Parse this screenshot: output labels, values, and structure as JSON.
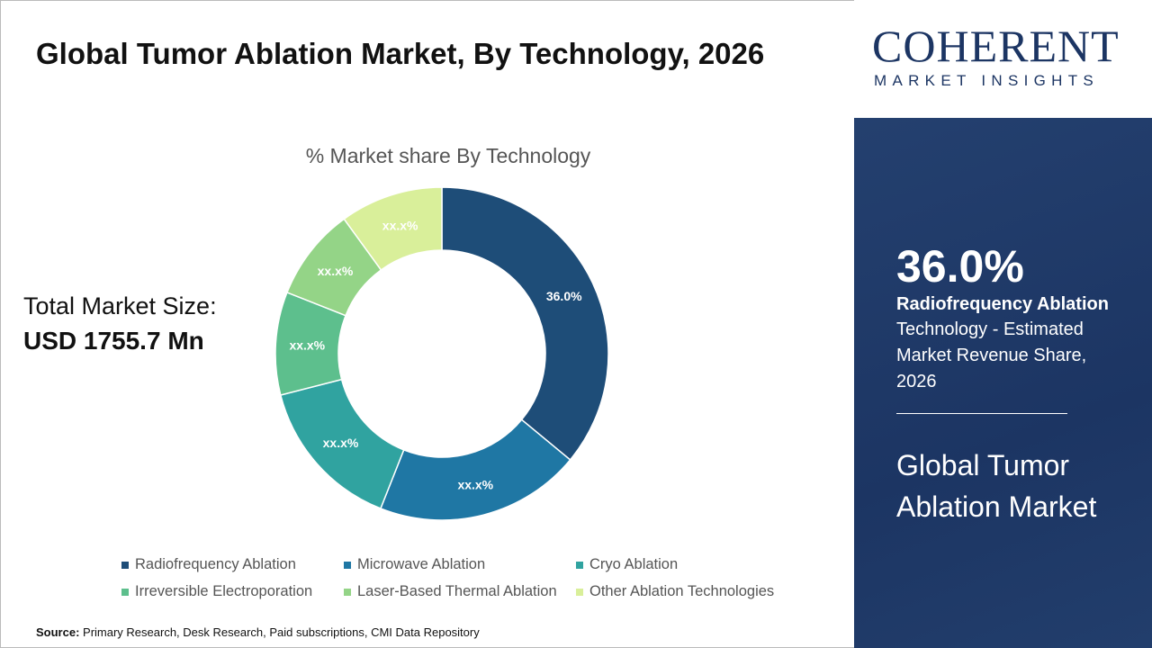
{
  "title": "Global Tumor Ablation Market, By Technology, 2026",
  "total_label": "Total Market Size:",
  "total_value": "USD 1755.7 Mn",
  "source_label": "Source:",
  "source_text": " Primary Research, Desk Research, Paid subscriptions, CMI Data Repository",
  "logo": {
    "line1": "COHERENT",
    "line2": "MARKET INSIGHTS"
  },
  "panel": {
    "value": "36.0%",
    "segment": "Radiofrequency Ablation",
    "description": "Technology - Estimated Market Revenue Share, 2026",
    "market": "Global Tumor Ablation Market"
  },
  "chart_data": {
    "type": "pie",
    "donut": true,
    "title": "% Market share By Technology",
    "categories": [
      "Radiofrequency Ablation",
      "Microwave Ablation",
      "Cryo Ablation",
      "Irreversible Electroporation",
      "Laser-Based Thermal Ablation",
      "Other Ablation Technologies"
    ],
    "values": [
      36.0,
      20,
      15,
      10,
      9,
      10
    ],
    "labels": [
      "36.0%",
      "xx.x%",
      "xx.x%",
      "xx.x%",
      "xx.x%",
      "xx.x%"
    ],
    "colors": [
      "#1e4d78",
      "#1f77a4",
      "#30a3a0",
      "#5dbf8d",
      "#94d487",
      "#d9ef9a"
    ],
    "legend": "bottom"
  }
}
